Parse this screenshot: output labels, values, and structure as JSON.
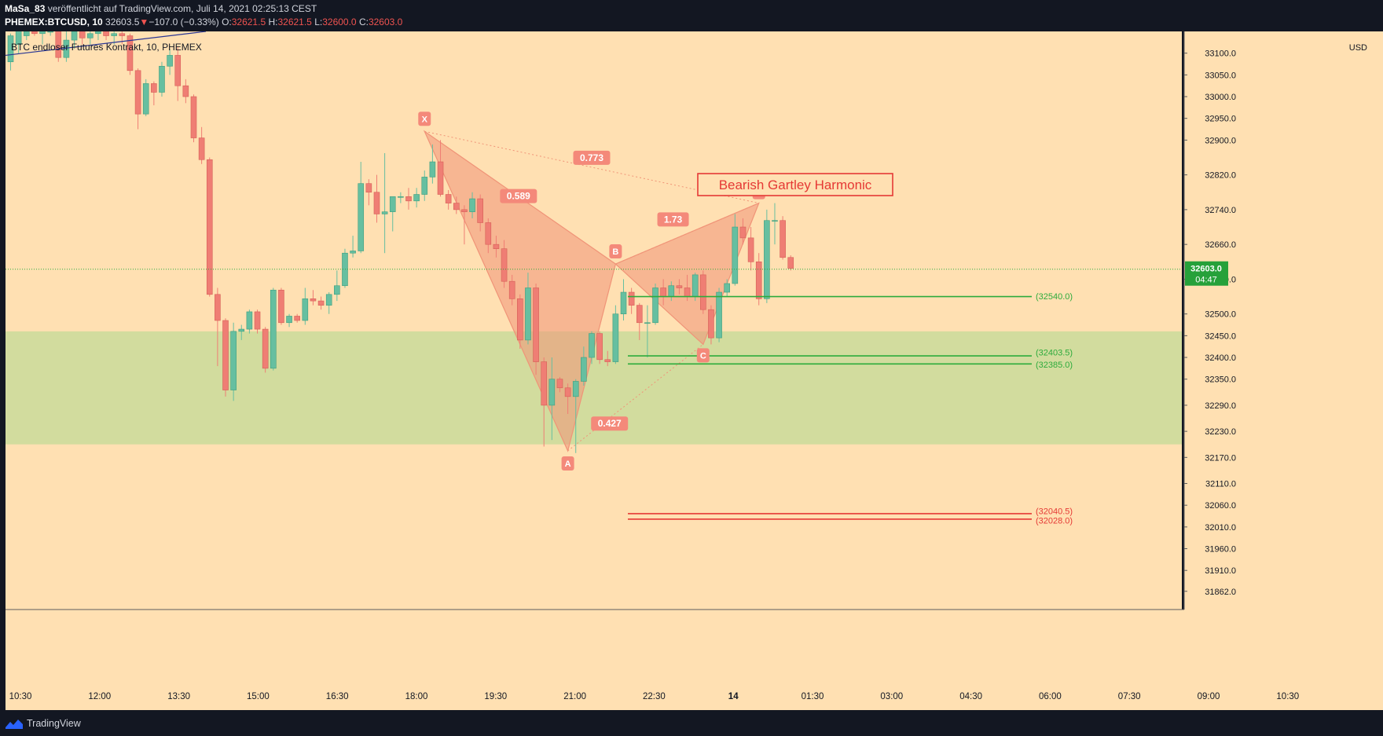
{
  "header": {
    "author": "MaSa_83",
    "published_text": "veröffentlicht auf TradingView.com, Juli 14, 2021 02:25:13 CEST",
    "symbol": "PHEMEX:BTCUSD, 10",
    "last_price": "32603.5",
    "change_arrow": "▼",
    "change": "−107.0 (−0.33%)",
    "open_label": "O:",
    "open": "32621.5",
    "high_label": "H:",
    "high": "32621.5",
    "low_label": "L:",
    "low": "32600.0",
    "close_label": "C:",
    "close": "32603.0"
  },
  "footer": {
    "brand": "TradingView"
  },
  "colors": {
    "background": "#ffe0b2",
    "up": "#66bfa0",
    "down": "#ef7e74",
    "pattern": "#f09478",
    "zone": "#d2dc9e",
    "green_line": "#2dab3c",
    "red_line": "#e53935"
  },
  "chart_data": {
    "type": "candlestick",
    "legend_title": "BTC endloser Futures Kontrakt, 10, PHEMEX",
    "currency": "USD",
    "ylim": [
      31820,
      33150
    ],
    "y_ticks": [
      "33100.0",
      "33050.0",
      "33000.0",
      "32950.0",
      "32900.0",
      "32820.0",
      "32740.0",
      "32660.0",
      "32580.0",
      "32500.0",
      "32450.0",
      "32400.0",
      "32350.0",
      "32290.0",
      "32230.0",
      "32170.0",
      "32110.0",
      "32060.0",
      "32010.0",
      "31960.0",
      "31910.0",
      "31862.0"
    ],
    "x_tick_labels": [
      "10:30",
      "12:00",
      "13:30",
      "15:00",
      "16:30",
      "18:00",
      "19:30",
      "21:00",
      "22:30",
      "14",
      "01:30",
      "03:00",
      "04:30",
      "06:00",
      "07:30",
      "09:00",
      "10:30"
    ],
    "current_price": "32603.0",
    "countdown": "04:47",
    "candles": [
      {
        "o": 33080,
        "h": 33145,
        "l": 33060,
        "c": 33140
      },
      {
        "o": 33120,
        "h": 33160,
        "l": 33100,
        "c": 33155
      },
      {
        "o": 33140,
        "h": 33160,
        "l": 33130,
        "c": 33150
      },
      {
        "o": 33150,
        "h": 33160,
        "l": 33140,
        "c": 33145
      },
      {
        "o": 33145,
        "h": 33160,
        "l": 33120,
        "c": 33150
      },
      {
        "o": 33150,
        "h": 33160,
        "l": 33140,
        "c": 33150
      },
      {
        "o": 33150,
        "h": 33160,
        "l": 33080,
        "c": 33090
      },
      {
        "o": 33090,
        "h": 33150,
        "l": 33080,
        "c": 33130
      },
      {
        "o": 33130,
        "h": 33160,
        "l": 33110,
        "c": 33150
      },
      {
        "o": 33150,
        "h": 33160,
        "l": 33120,
        "c": 33135
      },
      {
        "o": 33135,
        "h": 33155,
        "l": 33120,
        "c": 33145
      },
      {
        "o": 33145,
        "h": 33160,
        "l": 33130,
        "c": 33150
      },
      {
        "o": 33150,
        "h": 33160,
        "l": 33130,
        "c": 33140
      },
      {
        "o": 33140,
        "h": 33160,
        "l": 33120,
        "c": 33145
      },
      {
        "o": 33145,
        "h": 33160,
        "l": 33120,
        "c": 33140
      },
      {
        "o": 33140,
        "h": 33145,
        "l": 33050,
        "c": 33060
      },
      {
        "o": 33060,
        "h": 33065,
        "l": 32925,
        "c": 32960
      },
      {
        "o": 32960,
        "h": 33040,
        "l": 32955,
        "c": 33030
      },
      {
        "o": 33030,
        "h": 33035,
        "l": 32980,
        "c": 33010
      },
      {
        "o": 33010,
        "h": 33080,
        "l": 33000,
        "c": 33070
      },
      {
        "o": 33070,
        "h": 33110,
        "l": 33050,
        "c": 33095
      },
      {
        "o": 33095,
        "h": 33115,
        "l": 32990,
        "c": 33025
      },
      {
        "o": 33025,
        "h": 33040,
        "l": 32985,
        "c": 33000
      },
      {
        "o": 33000,
        "h": 33005,
        "l": 32895,
        "c": 32905
      },
      {
        "o": 32905,
        "h": 32930,
        "l": 32845,
        "c": 32855
      },
      {
        "o": 32855,
        "h": 32860,
        "l": 32540,
        "c": 32545
      },
      {
        "o": 32545,
        "h": 32560,
        "l": 32380,
        "c": 32485
      },
      {
        "o": 32485,
        "h": 32490,
        "l": 32310,
        "c": 32325
      },
      {
        "o": 32325,
        "h": 32480,
        "l": 32300,
        "c": 32460
      },
      {
        "o": 32460,
        "h": 32475,
        "l": 32440,
        "c": 32465
      },
      {
        "o": 32465,
        "h": 32510,
        "l": 32455,
        "c": 32505
      },
      {
        "o": 32505,
        "h": 32510,
        "l": 32455,
        "c": 32465
      },
      {
        "o": 32465,
        "h": 32470,
        "l": 32365,
        "c": 32375
      },
      {
        "o": 32375,
        "h": 32560,
        "l": 32370,
        "c": 32555
      },
      {
        "o": 32555,
        "h": 32560,
        "l": 32475,
        "c": 32480
      },
      {
        "o": 32480,
        "h": 32500,
        "l": 32470,
        "c": 32495
      },
      {
        "o": 32495,
        "h": 32500,
        "l": 32480,
        "c": 32485
      },
      {
        "o": 32485,
        "h": 32560,
        "l": 32475,
        "c": 32535
      },
      {
        "o": 32535,
        "h": 32555,
        "l": 32520,
        "c": 32530
      },
      {
        "o": 32530,
        "h": 32540,
        "l": 32510,
        "c": 32520
      },
      {
        "o": 32520,
        "h": 32550,
        "l": 32500,
        "c": 32545
      },
      {
        "o": 32545,
        "h": 32600,
        "l": 32530,
        "c": 32565
      },
      {
        "o": 32565,
        "h": 32650,
        "l": 32560,
        "c": 32640
      },
      {
        "o": 32640,
        "h": 32680,
        "l": 32630,
        "c": 32645
      },
      {
        "o": 32645,
        "h": 32850,
        "l": 32640,
        "c": 32800
      },
      {
        "o": 32800,
        "h": 32810,
        "l": 32750,
        "c": 32780
      },
      {
        "o": 32780,
        "h": 32820,
        "l": 32710,
        "c": 32730
      },
      {
        "o": 32730,
        "h": 32870,
        "l": 32640,
        "c": 32735
      },
      {
        "o": 32735,
        "h": 32760,
        "l": 32690,
        "c": 32770
      },
      {
        "o": 32770,
        "h": 32780,
        "l": 32755,
        "c": 32770
      },
      {
        "o": 32770,
        "h": 32790,
        "l": 32740,
        "c": 32760
      },
      {
        "o": 32760,
        "h": 32790,
        "l": 32745,
        "c": 32775
      },
      {
        "o": 32775,
        "h": 32830,
        "l": 32760,
        "c": 32815
      },
      {
        "o": 32815,
        "h": 32890,
        "l": 32800,
        "c": 32850
      },
      {
        "o": 32850,
        "h": 32900,
        "l": 32770,
        "c": 32775
      },
      {
        "o": 32775,
        "h": 32785,
        "l": 32740,
        "c": 32755
      },
      {
        "o": 32755,
        "h": 32770,
        "l": 32730,
        "c": 32740
      },
      {
        "o": 32740,
        "h": 32750,
        "l": 32660,
        "c": 32735
      },
      {
        "o": 32735,
        "h": 32780,
        "l": 32720,
        "c": 32765
      },
      {
        "o": 32765,
        "h": 32775,
        "l": 32690,
        "c": 32710
      },
      {
        "o": 32710,
        "h": 32720,
        "l": 32640,
        "c": 32660
      },
      {
        "o": 32660,
        "h": 32680,
        "l": 32630,
        "c": 32650
      },
      {
        "o": 32650,
        "h": 32670,
        "l": 32560,
        "c": 32575
      },
      {
        "o": 32575,
        "h": 32590,
        "l": 32520,
        "c": 32535
      },
      {
        "o": 32535,
        "h": 32545,
        "l": 32420,
        "c": 32440
      },
      {
        "o": 32440,
        "h": 32595,
        "l": 32430,
        "c": 32560
      },
      {
        "o": 32560,
        "h": 32570,
        "l": 32360,
        "c": 32390
      },
      {
        "o": 32390,
        "h": 32400,
        "l": 32195,
        "c": 32290
      },
      {
        "o": 32290,
        "h": 32400,
        "l": 32210,
        "c": 32350
      },
      {
        "o": 32350,
        "h": 32355,
        "l": 32320,
        "c": 32330
      },
      {
        "o": 32330,
        "h": 32340,
        "l": 32270,
        "c": 32310
      },
      {
        "o": 32310,
        "h": 32350,
        "l": 32180,
        "c": 32345
      },
      {
        "o": 32345,
        "h": 32425,
        "l": 32335,
        "c": 32400
      },
      {
        "o": 32400,
        "h": 32460,
        "l": 32385,
        "c": 32455
      },
      {
        "o": 32455,
        "h": 32460,
        "l": 32385,
        "c": 32395
      },
      {
        "o": 32395,
        "h": 32415,
        "l": 32380,
        "c": 32390
      },
      {
        "o": 32390,
        "h": 32520,
        "l": 32385,
        "c": 32500
      },
      {
        "o": 32500,
        "h": 32580,
        "l": 32485,
        "c": 32550
      },
      {
        "o": 32550,
        "h": 32560,
        "l": 32500,
        "c": 32520
      },
      {
        "o": 32520,
        "h": 32525,
        "l": 32440,
        "c": 32480
      },
      {
        "o": 32480,
        "h": 32520,
        "l": 32400,
        "c": 32480
      },
      {
        "o": 32480,
        "h": 32570,
        "l": 32475,
        "c": 32560
      },
      {
        "o": 32560,
        "h": 32580,
        "l": 32520,
        "c": 32540
      },
      {
        "o": 32540,
        "h": 32575,
        "l": 32530,
        "c": 32565
      },
      {
        "o": 32565,
        "h": 32580,
        "l": 32545,
        "c": 32560
      },
      {
        "o": 32560,
        "h": 32590,
        "l": 32530,
        "c": 32540
      },
      {
        "o": 32540,
        "h": 32595,
        "l": 32530,
        "c": 32590
      },
      {
        "o": 32590,
        "h": 32600,
        "l": 32500,
        "c": 32510
      },
      {
        "o": 32510,
        "h": 32520,
        "l": 32430,
        "c": 32445
      },
      {
        "o": 32445,
        "h": 32560,
        "l": 32435,
        "c": 32550
      },
      {
        "o": 32550,
        "h": 32580,
        "l": 32540,
        "c": 32570
      },
      {
        "o": 32570,
        "h": 32730,
        "l": 32565,
        "c": 32700
      },
      {
        "o": 32700,
        "h": 32720,
        "l": 32660,
        "c": 32675
      },
      {
        "o": 32675,
        "h": 32700,
        "l": 32600,
        "c": 32620
      },
      {
        "o": 32620,
        "h": 32640,
        "l": 32520,
        "c": 32535
      },
      {
        "o": 32535,
        "h": 32740,
        "l": 32525,
        "c": 32715
      },
      {
        "o": 32715,
        "h": 32755,
        "l": 32660,
        "c": 32715
      },
      {
        "o": 32715,
        "h": 32725,
        "l": 32625,
        "c": 32630
      },
      {
        "o": 32630,
        "h": 32635,
        "l": 32600,
        "c": 32605
      }
    ],
    "zone": {
      "from": 32200,
      "to": 32460
    },
    "horizontal_levels": [
      {
        "value": 32540.0,
        "label": "(32540.0)",
        "color": "green"
      },
      {
        "value": 32403.5,
        "label": "(32403.5)",
        "color": "green"
      },
      {
        "value": 32385.0,
        "label": "(32385.0)",
        "color": "green"
      },
      {
        "value": 32040.5,
        "label": "(32040.5)",
        "color": "red"
      },
      {
        "value": 32028.0,
        "label": "(32028.0)",
        "color": "red"
      }
    ],
    "harmonic_pattern": {
      "name": "Bearish Gartley Harmonic",
      "points": [
        {
          "label": "X",
          "bar": 52,
          "price": 32920
        },
        {
          "label": "A",
          "bar": 70,
          "price": 32185
        },
        {
          "label": "B",
          "bar": 76,
          "price": 32615
        },
        {
          "label": "C",
          "bar": 87,
          "price": 32430
        },
        {
          "label": "D",
          "bar": 94,
          "price": 32755
        }
      ],
      "ratios": [
        {
          "value": "0.589",
          "leg": "XB"
        },
        {
          "value": "0.427",
          "leg": "AC"
        },
        {
          "value": "1.73",
          "leg": "BD"
        },
        {
          "value": "0.773",
          "leg": "XD"
        }
      ]
    }
  }
}
